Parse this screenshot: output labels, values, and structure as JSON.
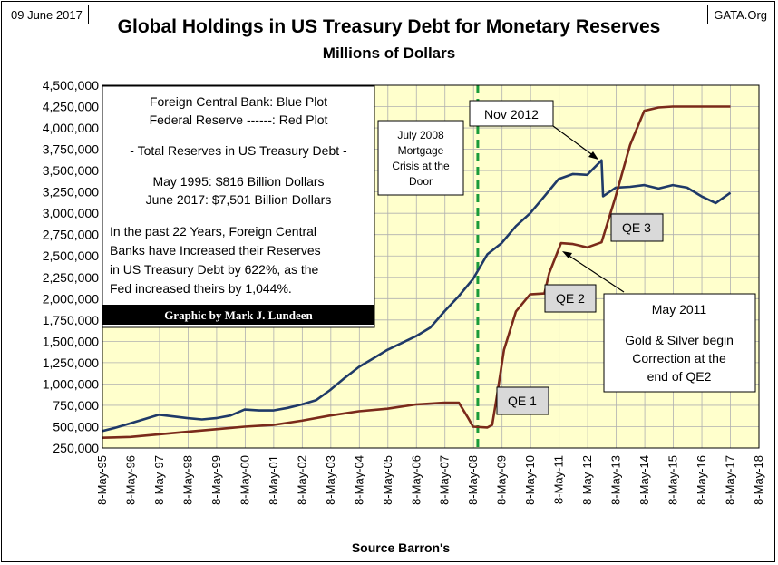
{
  "header": {
    "date": "09 June 2017",
    "source_tag": "GATA.Org",
    "title": "Global Holdings in US Treasury Debt for Monetary Reserves",
    "subtitle": "Millions of Dollars"
  },
  "legend": {
    "line1": "Foreign Central Bank: Blue Plot",
    "line2": "Federal Reserve ------: Red Plot",
    "line3": "- Total Reserves in US Treasury Debt -",
    "line4": "May 1995:   $816 Billion Dollars",
    "line5": "June 2017: $7,501 Billion Dollars",
    "para": [
      "In the past 22 Years, Foreign Central",
      "Banks have Increased their Reserves",
      "in US Treasury Debt by 622%, as the",
      "Fed increased theirs by 1,044%."
    ],
    "credit": "Graphic by Mark J. Lundeen"
  },
  "annotations": {
    "july2008": [
      "July 2008",
      "Mortgage",
      "Crisis at the",
      "Door"
    ],
    "nov2012": "Nov 2012",
    "qe1": "QE 1",
    "qe2": "QE 2",
    "qe3": "QE 3",
    "may2011": [
      "May 2011",
      "",
      "Gold & Silver  begin",
      "Correction at the",
      "end of QE2"
    ]
  },
  "colors": {
    "plot_bg": "#ffffcc",
    "blue_series": "#1f3a68",
    "red_series": "#7a2a1a",
    "dashed_line": "#1a9b3a",
    "grid": "#b0b0b0",
    "label_box": "#d9d9d9"
  },
  "chart_data": {
    "type": "line",
    "xlabel": "Source Barron's",
    "ylabel": "",
    "x_ticks": [
      "8-May-95",
      "8-May-96",
      "8-May-97",
      "8-May-98",
      "8-May-99",
      "8-May-00",
      "8-May-01",
      "8-May-02",
      "8-May-03",
      "8-May-04",
      "8-May-05",
      "8-May-06",
      "8-May-07",
      "8-May-08",
      "8-May-09",
      "8-May-10",
      "8-May-11",
      "8-May-12",
      "8-May-13",
      "8-May-14",
      "8-May-15",
      "8-May-16",
      "8-May-17",
      "8-May-18"
    ],
    "y_ticks": [
      "250,000",
      "500,000",
      "750,000",
      "1,000,000",
      "1,250,000",
      "1,500,000",
      "1,750,000",
      "2,000,000",
      "2,250,000",
      "2,500,000",
      "2,750,000",
      "3,000,000",
      "3,250,000",
      "3,500,000",
      "3,750,000",
      "4,000,000",
      "4,250,000",
      "4,500,000"
    ],
    "xlim": [
      "1995-05-08",
      "2018-05-08"
    ],
    "ylim": [
      250000,
      4500000
    ],
    "grid": true,
    "marker_date": "2008-07-01",
    "series": [
      {
        "key": "foreign",
        "points": [
          [
            "1995-05-08",
            450000
          ],
          [
            "1995-11-01",
            490000
          ],
          [
            "1996-05-01",
            540000
          ],
          [
            "1996-11-01",
            590000
          ],
          [
            "1997-05-01",
            640000
          ],
          [
            "1997-11-01",
            620000
          ],
          [
            "1998-05-01",
            600000
          ],
          [
            "1998-11-01",
            585000
          ],
          [
            "1999-05-01",
            600000
          ],
          [
            "1999-11-01",
            630000
          ],
          [
            "2000-05-01",
            700000
          ],
          [
            "2000-11-01",
            690000
          ],
          [
            "2001-05-01",
            690000
          ],
          [
            "2001-11-01",
            720000
          ],
          [
            "2002-05-01",
            760000
          ],
          [
            "2002-11-01",
            810000
          ],
          [
            "2003-05-01",
            930000
          ],
          [
            "2003-11-01",
            1070000
          ],
          [
            "2004-05-01",
            1200000
          ],
          [
            "2004-11-01",
            1300000
          ],
          [
            "2005-05-01",
            1400000
          ],
          [
            "2005-11-01",
            1480000
          ],
          [
            "2006-05-01",
            1560000
          ],
          [
            "2006-11-01",
            1660000
          ],
          [
            "2007-05-01",
            1850000
          ],
          [
            "2007-11-01",
            2030000
          ],
          [
            "2008-05-01",
            2230000
          ],
          [
            "2008-11-01",
            2520000
          ],
          [
            "2009-05-01",
            2650000
          ],
          [
            "2009-11-01",
            2850000
          ],
          [
            "2010-05-01",
            3000000
          ],
          [
            "2010-11-01",
            3200000
          ],
          [
            "2011-05-01",
            3400000
          ],
          [
            "2011-11-01",
            3460000
          ],
          [
            "2012-05-01",
            3450000
          ],
          [
            "2012-11-01",
            3620000
          ],
          [
            "2012-11-20",
            3200000
          ],
          [
            "2013-05-01",
            3300000
          ],
          [
            "2013-11-01",
            3310000
          ],
          [
            "2014-05-01",
            3330000
          ],
          [
            "2014-11-01",
            3290000
          ],
          [
            "2015-05-01",
            3330000
          ],
          [
            "2015-11-01",
            3300000
          ],
          [
            "2016-05-01",
            3200000
          ],
          [
            "2016-11-01",
            3120000
          ],
          [
            "2017-05-08",
            3240000
          ]
        ]
      },
      {
        "key": "fed",
        "points": [
          [
            "1995-05-08",
            370000
          ],
          [
            "1996-05-01",
            380000
          ],
          [
            "1997-05-01",
            410000
          ],
          [
            "1998-05-01",
            440000
          ],
          [
            "1999-05-01",
            470000
          ],
          [
            "2000-05-01",
            500000
          ],
          [
            "2001-05-01",
            520000
          ],
          [
            "2002-05-01",
            570000
          ],
          [
            "2003-05-01",
            630000
          ],
          [
            "2004-05-01",
            680000
          ],
          [
            "2005-05-01",
            710000
          ],
          [
            "2006-05-01",
            760000
          ],
          [
            "2007-05-01",
            780000
          ],
          [
            "2007-11-01",
            780000
          ],
          [
            "2008-03-01",
            600000
          ],
          [
            "2008-05-01",
            500000
          ],
          [
            "2008-11-01",
            490000
          ],
          [
            "2009-01-01",
            520000
          ],
          [
            "2009-03-01",
            850000
          ],
          [
            "2009-06-01",
            1400000
          ],
          [
            "2009-11-01",
            1850000
          ],
          [
            "2010-05-01",
            2050000
          ],
          [
            "2010-11-01",
            2060000
          ],
          [
            "2011-01-01",
            2300000
          ],
          [
            "2011-06-01",
            2650000
          ],
          [
            "2011-11-01",
            2640000
          ],
          [
            "2012-05-01",
            2600000
          ],
          [
            "2012-11-01",
            2660000
          ],
          [
            "2013-05-01",
            3200000
          ],
          [
            "2013-11-01",
            3800000
          ],
          [
            "2014-05-01",
            4200000
          ],
          [
            "2014-11-01",
            4240000
          ],
          [
            "2015-05-01",
            4250000
          ],
          [
            "2016-05-01",
            4250000
          ],
          [
            "2017-05-08",
            4250000
          ]
        ]
      }
    ]
  }
}
